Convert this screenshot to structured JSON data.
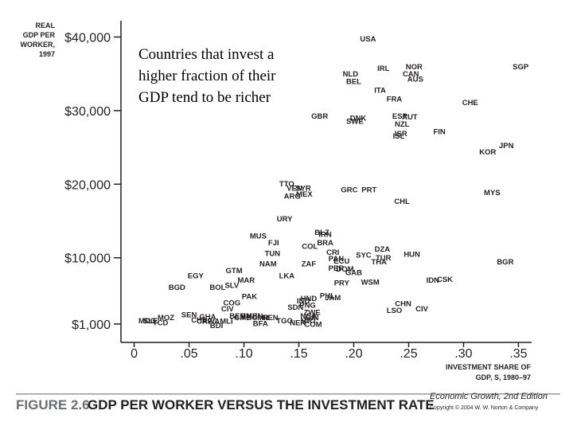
{
  "chart_data": {
    "type": "scatter",
    "title": "GDP PER WORKER VERSUS THE INVESTMENT RATE",
    "figure_label": "FIGURE 2.6",
    "ylabel_lines": [
      "REAL",
      "GDP PER",
      "WORKER,",
      "1997"
    ],
    "xlabel_lines": [
      "INVESTMENT SHARE OF",
      "GDP, S, 1980–97"
    ],
    "annotation_lines": [
      "Countries that invest a",
      "higher fraction of their",
      "GDP tend to be richer"
    ],
    "publisher": "Economic Growth, 2nd Edition",
    "copyright": "Copyright © 2004 W. W. Norton & Company",
    "xlim": [
      -0.012,
      0.362
    ],
    "ylim": [
      -1500,
      42000
    ],
    "x_ticks": [
      0,
      0.05,
      0.1,
      0.15,
      0.2,
      0.25,
      0.3,
      0.35
    ],
    "x_tick_labels": [
      "0",
      ".05",
      ".10",
      ".15",
      ".20",
      ".25",
      ".30",
      ".35"
    ],
    "y_ticks": [
      1000,
      10000,
      20000,
      30000,
      40000
    ],
    "y_tick_labels": [
      "$1,000",
      "$10,000",
      "$20,000",
      "$30,000",
      "$40,000"
    ],
    "points": [
      {
        "label": "USA",
        "x": 0.213,
        "y": 39800
      },
      {
        "label": "NOR",
        "x": 0.255,
        "y": 36000
      },
      {
        "label": "SGP",
        "x": 0.352,
        "y": 36000
      },
      {
        "label": "IRL",
        "x": 0.227,
        "y": 35800
      },
      {
        "label": "NLD",
        "x": 0.197,
        "y": 35000
      },
      {
        "label": "CAN",
        "x": 0.252,
        "y": 35000
      },
      {
        "label": "AUS",
        "x": 0.256,
        "y": 34300
      },
      {
        "label": "BEL",
        "x": 0.2,
        "y": 34000
      },
      {
        "label": "ITA",
        "x": 0.224,
        "y": 32800
      },
      {
        "label": "FRA",
        "x": 0.237,
        "y": 31600
      },
      {
        "label": "CHE",
        "x": 0.306,
        "y": 31100
      },
      {
        "label": "GBR",
        "x": 0.169,
        "y": 29300
      },
      {
        "label": "ESP",
        "x": 0.242,
        "y": 29300
      },
      {
        "label": "AUT",
        "x": 0.251,
        "y": 29200
      },
      {
        "label": "DNK",
        "x": 0.204,
        "y": 29000
      },
      {
        "label": "SWE",
        "x": 0.201,
        "y": 28600
      },
      {
        "label": "FIN",
        "x": 0.278,
        "y": 27200
      },
      {
        "label": "JPN",
        "x": 0.339,
        "y": 25300
      },
      {
        "label": "KOR",
        "x": 0.322,
        "y": 24400
      },
      {
        "label": "NZL",
        "x": 0.244,
        "y": 28200
      },
      {
        "label": "ISR",
        "x": 0.243,
        "y": 26900
      },
      {
        "label": "ISL",
        "x": 0.241,
        "y": 26600
      },
      {
        "label": "TTO",
        "x": 0.139,
        "y": 20100
      },
      {
        "label": "VEN",
        "x": 0.146,
        "y": 19500
      },
      {
        "label": "SYR",
        "x": 0.154,
        "y": 19500
      },
      {
        "label": "GRC",
        "x": 0.196,
        "y": 19300
      },
      {
        "label": "PRT",
        "x": 0.214,
        "y": 19300
      },
      {
        "label": "MEX",
        "x": 0.155,
        "y": 18700
      },
      {
        "label": "MYS",
        "x": 0.326,
        "y": 18900
      },
      {
        "label": "ARG",
        "x": 0.144,
        "y": 18400
      },
      {
        "label": "CHL",
        "x": 0.244,
        "y": 17700
      },
      {
        "label": "URY",
        "x": 0.137,
        "y": 15300
      },
      {
        "label": "MUS",
        "x": 0.113,
        "y": 13000
      },
      {
        "label": "BLZ",
        "x": 0.171,
        "y": 13500
      },
      {
        "label": "IRN",
        "x": 0.174,
        "y": 13200
      },
      {
        "label": "FJI",
        "x": 0.127,
        "y": 12100
      },
      {
        "label": "BRA",
        "x": 0.174,
        "y": 12100
      },
      {
        "label": "COL",
        "x": 0.16,
        "y": 11600
      },
      {
        "label": "DZA",
        "x": 0.226,
        "y": 11200
      },
      {
        "label": "CRI",
        "x": 0.181,
        "y": 10800
      },
      {
        "label": "TUN",
        "x": 0.126,
        "y": 10600
      },
      {
        "label": "SYC",
        "x": 0.209,
        "y": 10400
      },
      {
        "label": "HUN",
        "x": 0.253,
        "y": 10500
      },
      {
        "label": "TUR",
        "x": 0.227,
        "y": 10000
      },
      {
        "label": "PAN",
        "x": 0.184,
        "y": 9900
      },
      {
        "label": "ECU",
        "x": 0.189,
        "y": 9600
      },
      {
        "label": "THA",
        "x": 0.223,
        "y": 9500
      },
      {
        "label": "BGR",
        "x": 0.338,
        "y": 9500
      },
      {
        "label": "NAM",
        "x": 0.122,
        "y": 9200
      },
      {
        "label": "ZAF",
        "x": 0.159,
        "y": 9200
      },
      {
        "label": "PER",
        "x": 0.184,
        "y": 8600
      },
      {
        "label": "DOM",
        "x": 0.192,
        "y": 8500
      },
      {
        "label": "GTM",
        "x": 0.091,
        "y": 8300
      },
      {
        "label": "GAB",
        "x": 0.2,
        "y": 8000
      },
      {
        "label": "EGY",
        "x": 0.056,
        "y": 7600
      },
      {
        "label": "LKA",
        "x": 0.139,
        "y": 7600
      },
      {
        "label": "MAR",
        "x": 0.102,
        "y": 7000
      },
      {
        "label": "IDN",
        "x": 0.272,
        "y": 7000
      },
      {
        "label": "CSK",
        "x": 0.283,
        "y": 7100
      },
      {
        "label": "WSM",
        "x": 0.215,
        "y": 6700
      },
      {
        "label": "PRY",
        "x": 0.189,
        "y": 6600
      },
      {
        "label": "SLV",
        "x": 0.089,
        "y": 6300
      },
      {
        "label": "BGD",
        "x": 0.039,
        "y": 6000
      },
      {
        "label": "BOL",
        "x": 0.076,
        "y": 6000
      },
      {
        "label": "PAK",
        "x": 0.105,
        "y": 4800
      },
      {
        "label": "PHL",
        "x": 0.176,
        "y": 4900
      },
      {
        "label": "JAM",
        "x": 0.181,
        "y": 4600
      },
      {
        "label": "HND",
        "x": 0.159,
        "y": 4500
      },
      {
        "label": "IND",
        "x": 0.154,
        "y": 4200
      },
      {
        "label": "COG",
        "x": 0.089,
        "y": 3900
      },
      {
        "label": "PNG",
        "x": 0.158,
        "y": 3600
      },
      {
        "label": "CHN",
        "x": 0.245,
        "y": 3800
      },
      {
        "label": "SDN",
        "x": 0.147,
        "y": 3300
      },
      {
        "label": "CIV",
        "x": 0.085,
        "y": 3100
      },
      {
        "label": "LSO",
        "x": 0.237,
        "y": 2900
      },
      {
        "label": "CIV",
        "x": 0.262,
        "y": 3100
      },
      {
        "label": "ZWE",
        "x": 0.162,
        "y": 2600
      },
      {
        "label": "SEN",
        "x": 0.05,
        "y": 2300
      },
      {
        "label": "GHA",
        "x": 0.067,
        "y": 2000
      },
      {
        "label": "BEN",
        "x": 0.094,
        "y": 2100
      },
      {
        "label": "ZMB",
        "x": 0.105,
        "y": 2100
      },
      {
        "label": "KEN",
        "x": 0.11,
        "y": 2100
      },
      {
        "label": "CMR",
        "x": 0.115,
        "y": 1900
      },
      {
        "label": "GMB",
        "x": 0.099,
        "y": 1900
      },
      {
        "label": "MOZ",
        "x": 0.029,
        "y": 1900
      },
      {
        "label": "NGA",
        "x": 0.159,
        "y": 2100
      },
      {
        "label": "GIN",
        "x": 0.162,
        "y": 1900
      },
      {
        "label": "REN",
        "x": 0.124,
        "y": 1900
      },
      {
        "label": "CHL",
        "x": 0.059,
        "y": 1600
      },
      {
        "label": "SLE",
        "x": 0.015,
        "y": 1500
      },
      {
        "label": "TGO",
        "x": 0.137,
        "y": 1500
      },
      {
        "label": "CAF",
        "x": 0.064,
        "y": 1400
      },
      {
        "label": "RWA",
        "x": 0.07,
        "y": 1400
      },
      {
        "label": "MLI",
        "x": 0.084,
        "y": 1400
      },
      {
        "label": "MDG",
        "x": 0.012,
        "y": 1500
      },
      {
        "label": "TCD",
        "x": 0.024,
        "y": 1200
      },
      {
        "label": "BFA",
        "x": 0.115,
        "y": 1100
      },
      {
        "label": "MRT",
        "x": 0.159,
        "y": 1500
      },
      {
        "label": "NER",
        "x": 0.149,
        "y": 1200
      },
      {
        "label": "COM",
        "x": 0.163,
        "y": 1000
      },
      {
        "label": "BDI",
        "x": 0.075,
        "y": 800
      }
    ]
  }
}
